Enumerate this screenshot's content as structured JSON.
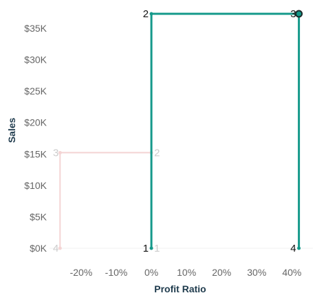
{
  "chart_data": {
    "type": "line",
    "xlabel": "Profit Ratio",
    "ylabel": "Sales",
    "xlim": [
      -29,
      46
    ],
    "ylim": [
      0,
      37300
    ],
    "x_ticks": [
      -20,
      -10,
      0,
      10,
      20,
      30,
      40
    ],
    "x_tick_labels": [
      "-20%",
      "-10%",
      "0%",
      "10%",
      "20%",
      "30%",
      "40%"
    ],
    "y_ticks": [
      0,
      5000,
      10000,
      15000,
      20000,
      25000,
      30000,
      35000
    ],
    "y_tick_labels": [
      "$0K",
      "$5K",
      "$10K",
      "$15K",
      "$20K",
      "$25K",
      "$30K",
      "$35K"
    ],
    "series": [
      {
        "color": "#f4d4d4",
        "label_color": "#cccccc",
        "points": [
          {
            "label": "1",
            "x": 0,
            "y": 0
          },
          {
            "label": "2",
            "x": 0,
            "y": 15200
          },
          {
            "label": "3",
            "x": -26,
            "y": 15200
          },
          {
            "label": "4",
            "x": -26,
            "y": 0
          }
        ]
      },
      {
        "color": "#14998a",
        "label_color": "#111111",
        "points": [
          {
            "label": "1",
            "x": 0,
            "y": 0
          },
          {
            "label": "2",
            "x": 0,
            "y": 37300
          },
          {
            "label": "3",
            "x": 42,
            "y": 37300
          },
          {
            "label": "4",
            "x": 42,
            "y": 0
          }
        ]
      }
    ]
  }
}
